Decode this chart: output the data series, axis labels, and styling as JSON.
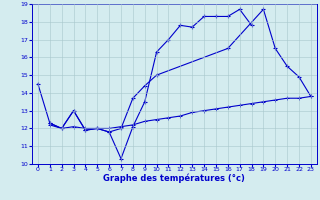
{
  "xlabel": "Graphe des températures (°c)",
  "background_color": "#d4ecef",
  "line_color": "#0000cc",
  "grid_color": "#a8c8cc",
  "xlim": [
    -0.5,
    23.5
  ],
  "ylim": [
    10,
    19
  ],
  "xticks": [
    0,
    1,
    2,
    3,
    4,
    5,
    6,
    7,
    8,
    9,
    10,
    11,
    12,
    13,
    14,
    15,
    16,
    17,
    18,
    19,
    20,
    21,
    22,
    23
  ],
  "yticks": [
    10,
    11,
    12,
    13,
    14,
    15,
    16,
    17,
    18,
    19
  ],
  "line1_x": [
    0,
    1,
    2,
    3,
    4,
    5,
    6,
    7,
    8,
    9,
    10,
    11,
    12,
    13,
    14,
    15,
    16,
    17,
    18
  ],
  "line1_y": [
    14.5,
    12.3,
    12.0,
    13.0,
    11.9,
    12.0,
    11.8,
    10.3,
    12.1,
    13.5,
    16.3,
    17.0,
    17.8,
    17.7,
    18.3,
    18.3,
    18.3,
    18.7,
    17.8
  ],
  "line2_x": [
    1,
    2,
    3,
    4,
    5,
    6,
    7,
    8,
    9,
    10,
    16,
    19,
    20,
    21,
    22,
    23
  ],
  "line2_y": [
    12.3,
    12.0,
    13.0,
    11.9,
    12.0,
    11.8,
    12.0,
    13.7,
    14.4,
    15.0,
    16.5,
    18.7,
    16.5,
    15.5,
    14.9,
    13.8
  ],
  "line3_x": [
    1,
    2,
    3,
    4,
    5,
    6,
    7,
    8,
    9,
    10,
    11,
    12,
    13,
    14,
    15,
    16,
    17,
    18,
    19,
    20,
    21,
    22,
    23
  ],
  "line3_y": [
    12.2,
    12.0,
    12.1,
    12.0,
    12.0,
    12.0,
    12.1,
    12.2,
    12.4,
    12.5,
    12.6,
    12.7,
    12.9,
    13.0,
    13.1,
    13.2,
    13.3,
    13.4,
    13.5,
    13.6,
    13.7,
    13.7,
    13.8
  ]
}
